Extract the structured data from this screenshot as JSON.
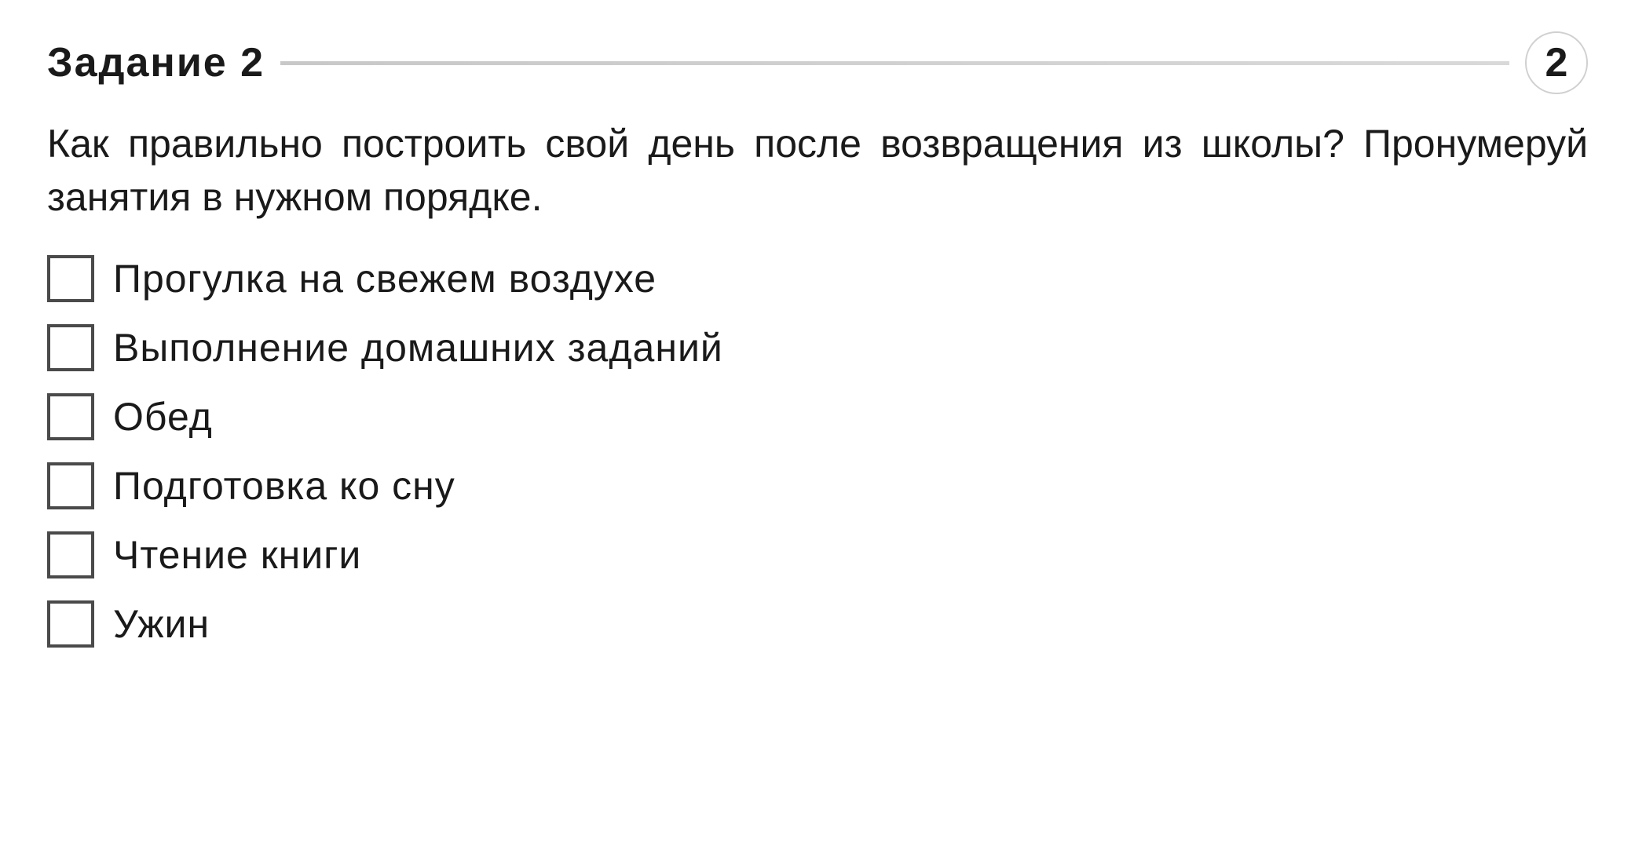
{
  "header": {
    "title": "Задание  2",
    "badge_number": "2"
  },
  "question": "Как правильно построить свой день после возвращения из школы? Пронумеруй занятия в нужном порядке.",
  "options": [
    {
      "label": "Прогулка на свежем воздухе"
    },
    {
      "label": "Выполнение домашних заданий"
    },
    {
      "label": "Обед"
    },
    {
      "label": "Подготовка ко сну"
    },
    {
      "label": "Чтение книги"
    },
    {
      "label": "Ужин"
    }
  ],
  "colors": {
    "background": "#ffffff",
    "text": "#1a1a1a",
    "checkbox_border": "#4a4a4a",
    "divider": "#d0d0d0",
    "circle_border": "#d0d0d0"
  },
  "typography": {
    "title_fontsize": 52,
    "title_weight": "bold",
    "body_fontsize": 50,
    "badge_fontsize": 52
  }
}
